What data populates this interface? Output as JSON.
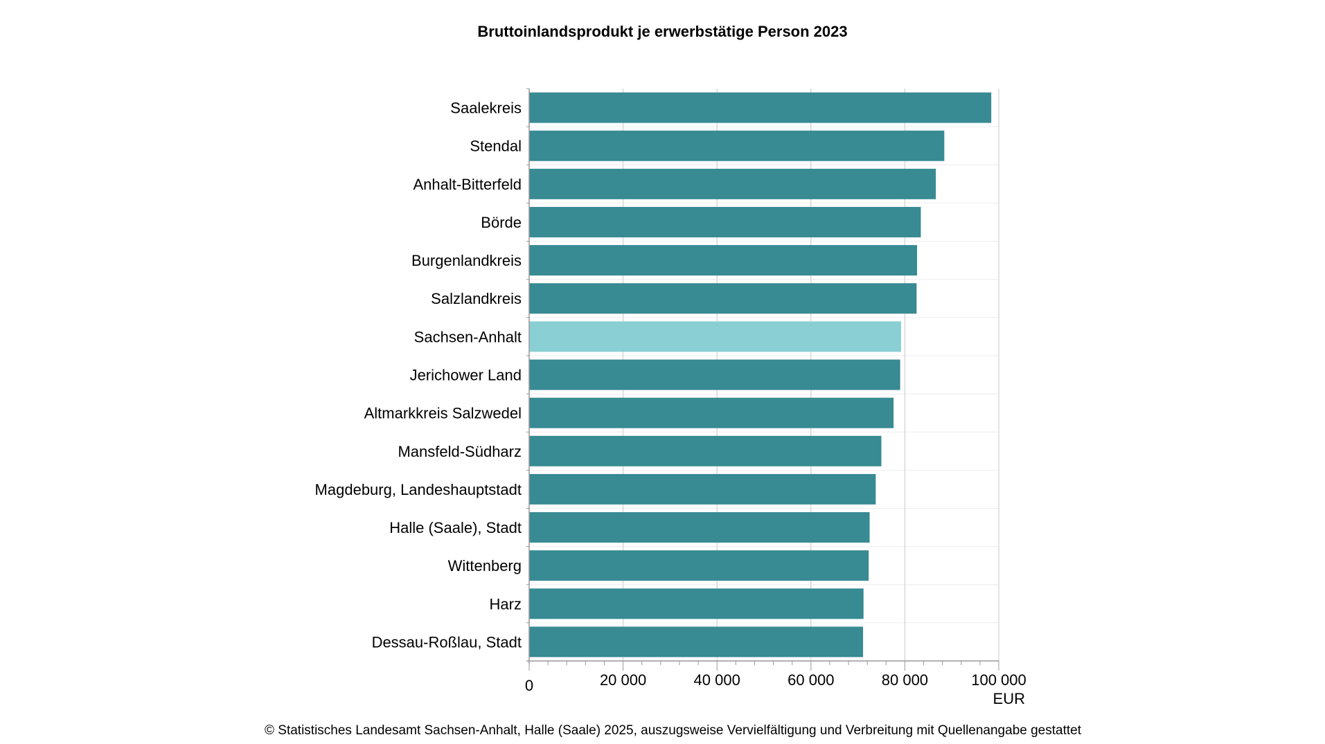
{
  "chart_data": {
    "type": "bar",
    "orientation": "horizontal",
    "title": "Bruttoinlandsprodukt je erwerbstätige Person 2023",
    "xlabel": "EUR",
    "ylabel": "",
    "xlim": [
      0,
      100000
    ],
    "xticks": [
      "0",
      "20 000",
      "40 000",
      "60 000",
      "80 000",
      "100 000"
    ],
    "xtick_values": [
      0,
      20000,
      40000,
      60000,
      80000,
      100000
    ],
    "grid": true,
    "categories": [
      "Saalekreis",
      "Stendal",
      "Anhalt-Bitterfeld",
      "Börde",
      "Burgenlandkreis",
      "Salzlandkreis",
      "Sachsen-Anhalt",
      "Jerichower Land",
      "Altmarkkreis Salzwedel",
      "Mansfeld-Südharz",
      "Magdeburg, Landeshauptstadt",
      "Halle (Saale), Stadt",
      "Wittenberg",
      "Harz",
      "Dessau-Roßlau, Stadt"
    ],
    "values": [
      98400,
      88400,
      86600,
      83400,
      82600,
      82500,
      79200,
      79000,
      77600,
      75000,
      73800,
      72500,
      72300,
      71200,
      71100
    ],
    "highlight": "Sachsen-Anhalt",
    "colors": {
      "bar": "#388a93",
      "highlight": "#8acfd3"
    }
  },
  "footer": "© Statistisches Landesamt Sachsen-Anhalt, Halle (Saale) 2025, auszugsweise Vervielfältigung und Verbreitung mit Quellenangabe gestattet"
}
